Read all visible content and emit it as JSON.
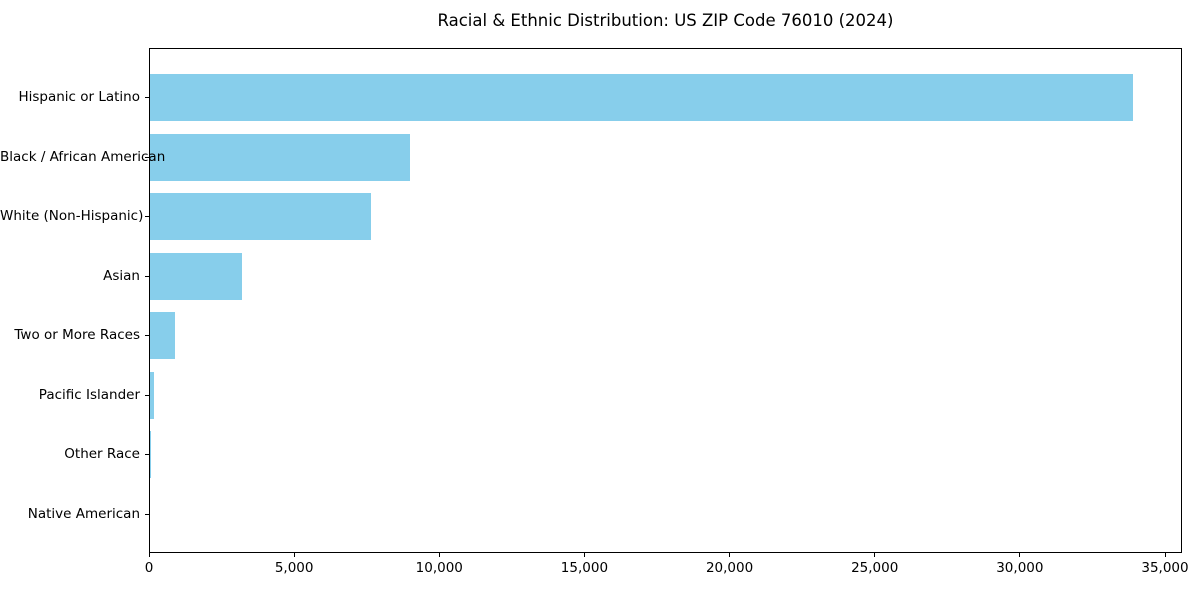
{
  "title": "Racial & Ethnic Distribution: US ZIP Code 76010 (2024)",
  "colors": {
    "bar": "#87CEEB",
    "axis": "#000000",
    "background": "#ffffff",
    "text": "#000000"
  },
  "chart_data": {
    "type": "bar",
    "orientation": "horizontal",
    "title": "Racial & Ethnic Distribution: US ZIP Code 76010 (2024)",
    "xlabel": "",
    "ylabel": "",
    "categories": [
      "Hispanic or Latino",
      "Black / African American",
      "White (Non-Hispanic)",
      "Asian",
      "Two or More Races",
      "Pacific Islander",
      "Other Race",
      "Native American"
    ],
    "values": [
      33900,
      9000,
      7650,
      3200,
      900,
      170,
      40,
      15
    ],
    "bar_color": "#87CEEB",
    "xlim": [
      0,
      35600
    ],
    "x_ticks": [
      0,
      5000,
      10000,
      15000,
      20000,
      25000,
      30000,
      35000
    ],
    "x_tick_labels": [
      "0",
      "5,000",
      "10,000",
      "15,000",
      "20,000",
      "25,000",
      "30,000",
      "35,000"
    ],
    "grid": false,
    "legend": null
  }
}
